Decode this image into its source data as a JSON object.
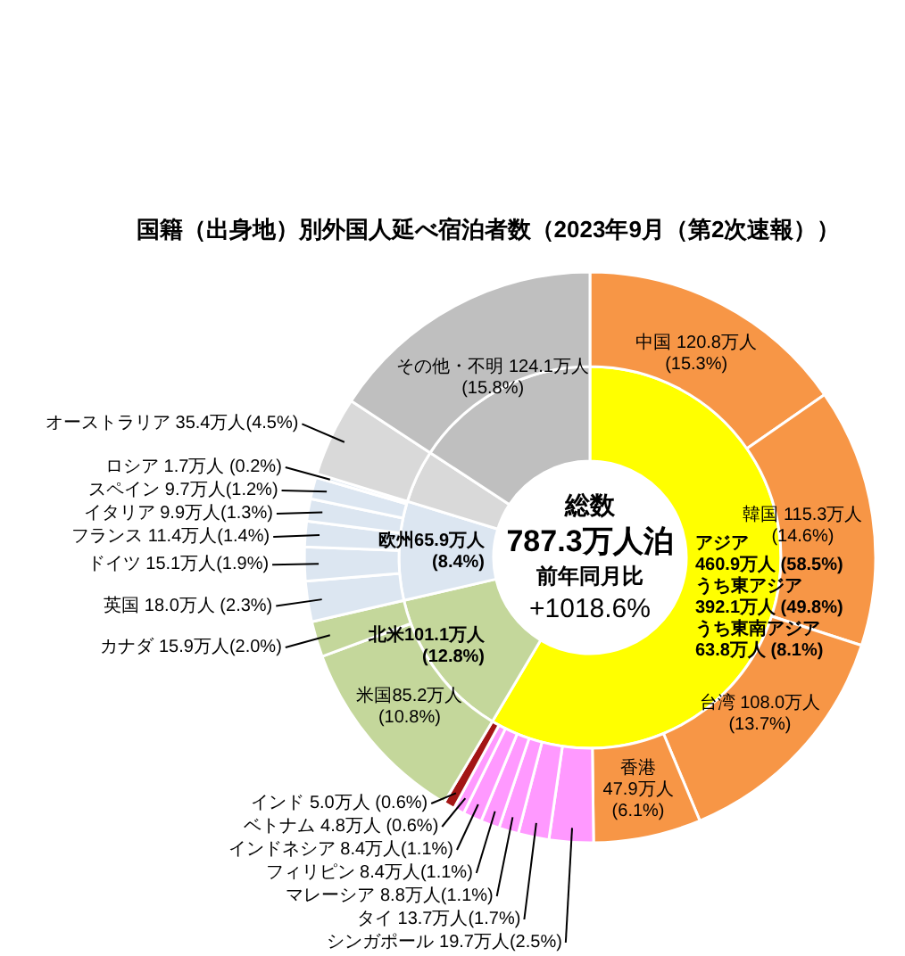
{
  "chart_data": {
    "type": "donut",
    "title": "国籍（出身地）別外国人延べ宿泊者数（2023年9月（第2次速報））",
    "annotations": [
      "総数",
      "787.3万人泊",
      "前年同月比",
      "+1018.6%"
    ],
    "series": [
      {
        "values": [
          460.9,
          101.1,
          65.9,
          35.4,
          124.1
        ],
        "colors": [
          "#ffff00",
          "#c4d79b",
          "#dce6f1",
          "#d9d9d9",
          "#bfbfbf"
        ],
        "value_labels": [
          "アジア\n460.9万人 (58.5%)\nうち東アジア\n392.1万人 (49.8%)\nうち東南アジア\n63.8万人 (8.1%)",
          "北米101.1万人\n(12.8%)",
          "欧州65.9万人\n(8.4%)",
          null,
          null
        ]
      },
      {
        "values": [
          120.8,
          115.3,
          108.0,
          47.9,
          19.7,
          13.7,
          8.8,
          8.4,
          8.4,
          4.8,
          5.0,
          85.2,
          15.9,
          18.0,
          15.1,
          11.4,
          9.9,
          9.7,
          1.7,
          35.4,
          124.1
        ],
        "colors": [
          "#f79646",
          "#f79646",
          "#f79646",
          "#f79646",
          "#ff99ff",
          "#ff99ff",
          "#ff99ff",
          "#ff99ff",
          "#ff99ff",
          "#ff99ff",
          "#a31515",
          "#c4d79b",
          "#c4d79b",
          "#dce6f1",
          "#dce6f1",
          "#dce6f1",
          "#dce6f1",
          "#dce6f1",
          "#dce6f1",
          "#d9d9d9",
          "#bfbfbf"
        ],
        "value_labels": [
          "中国 120.8万人\n(15.3%)",
          "韓国 115.3万人\n(14.6%)",
          "台湾 108.0万人\n(13.7%)",
          "香港 47.9万人\n(6.1%)",
          "シンガポール 19.7万人(2.5%)",
          "タイ 13.7万人(1.7%)",
          "マレーシア 8.8万人(1.1%)",
          "フィリピン 8.4万人(1.1%)",
          "インドネシア 8.4万人(1.1%)",
          "ベトナム 4.8万人 (0.6%)",
          "インド 5.0万人 (0.6%)",
          "米国85.2万人\n(10.8%)",
          "カナダ 15.9万人(2.0%)",
          "英国 18.0万人 (2.3%)",
          "ドイツ 15.1万人(1.9%)",
          "フランス 11.4万人(1.4%)",
          "イタリア 9.9万人(1.3%)",
          "スペイン 9.7万人(1.2%)",
          "ロシア 1.7万人 (0.2%)",
          "オーストラリア 35.4万人(4.5%)",
          "その他・不明 124.1万人\n(15.8%)"
        ]
      }
    ]
  }
}
